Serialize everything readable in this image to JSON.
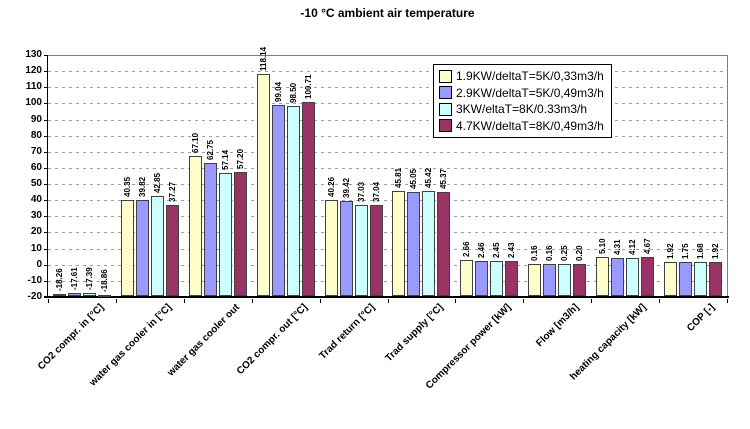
{
  "chart_data": {
    "type": "bar",
    "title": "-10 °C ambient air temperature",
    "categories": [
      "CO2 compr. in [°C]",
      "water gas cooler in [°C]",
      "water gas cooler out",
      "CO2 compr. out [°C]",
      "Trad return [°C]",
      "Trad supply [°C]",
      "Compressor power [kW]",
      "Flow [m3/h]",
      "heating capacity [kW]",
      "COP [-]"
    ],
    "series": [
      {
        "name": "1.9KW/deltaT=5K/0,33m3/h",
        "color": "#FFFFCC",
        "values": [
          -18.26,
          40.35,
          67.1,
          118.14,
          40.26,
          45.81,
          2.66,
          0.16,
          5.1,
          1.92
        ]
      },
      {
        "name": "2.9KW/deltaT=5K/0,49m3/h",
        "color": "#9999FF",
        "values": [
          -17.61,
          39.82,
          62.75,
          99.04,
          39.42,
          45.05,
          2.46,
          0.16,
          4.31,
          1.75
        ]
      },
      {
        "name": "3KW/eltaT=8K/0.33m3/h",
        "color": "#CCFFFF",
        "values": [
          -17.39,
          42.85,
          57.14,
          98.5,
          37.03,
          45.42,
          2.45,
          0.25,
          4.12,
          1.68
        ]
      },
      {
        "name": "4.7KW/deltaT=8K/0,49m3/h",
        "color": "#993366",
        "values": [
          -18.86,
          37.27,
          57.2,
          100.71,
          37.04,
          45.37,
          2.43,
          0.2,
          4.67,
          1.92
        ]
      }
    ],
    "ylim": [
      -20,
      130
    ],
    "ytick_step": 10,
    "yticks": [
      130,
      120,
      110,
      100,
      90,
      80,
      70,
      60,
      50,
      40,
      30,
      20,
      10,
      0,
      -10,
      -20
    ],
    "bars_baseline": -20,
    "value_label_decimals": 2,
    "value_labels_rotated_deg": 90,
    "category_labels_rotated_deg": 45,
    "grid": "horizontal-dashed",
    "legend_position": "top-right-inside",
    "colors": {
      "grid": "#9e9e9e",
      "axis": "#000000",
      "plot_border": "#808080",
      "bar_border": "#404040",
      "background": "#ffffff",
      "text": "#000000"
    }
  }
}
